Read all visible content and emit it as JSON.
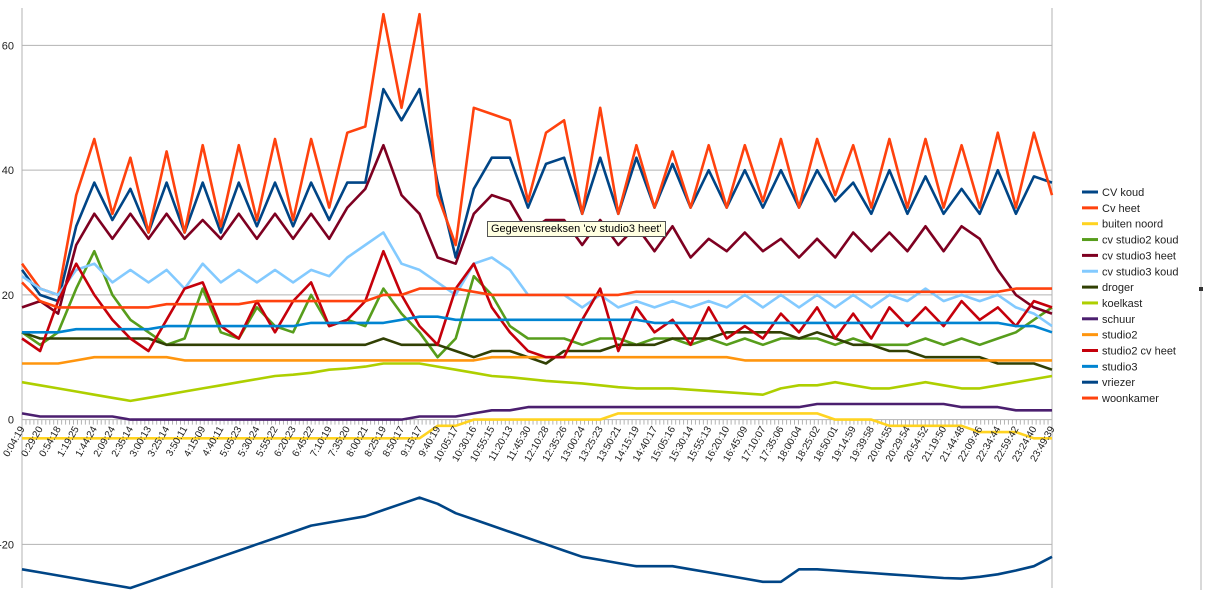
{
  "chart_data": {
    "type": "line",
    "ylim": [
      -27,
      66
    ],
    "yticks": [
      60,
      40,
      20,
      0,
      -20
    ],
    "grid": true,
    "legend_position": "right",
    "x": [
      "0:04:19",
      "0:29:20",
      "0:54:18",
      "1:19:25",
      "1:44:24",
      "2:09:24",
      "2:35:14",
      "3:00:13",
      "3:25:14",
      "3:50:11",
      "4:15:09",
      "4:40:11",
      "5:05:23",
      "5:30:24",
      "5:55:22",
      "6:20:23",
      "6:45:22",
      "7:10:19",
      "7:35:20",
      "8:00:21",
      "8:25:19",
      "8:50:17",
      "9:15:17",
      "9:40:19",
      "10:05:17",
      "10:30:16",
      "10:55:15",
      "11:20:13",
      "11:45:30",
      "12:10:28",
      "12:35:26",
      "13:00:24",
      "13:25:23",
      "13:50:21",
      "14:15:19",
      "14:40:17",
      "15:05:16",
      "15:30:14",
      "15:55:13",
      "16:20:10",
      "16:45:09",
      "17:10:07",
      "17:35:06",
      "18:00:04",
      "18:25:02",
      "18:50:01",
      "19:14:59",
      "19:39:58",
      "20:04:55",
      "20:29:54",
      "20:54:52",
      "21:19:50",
      "21:44:48",
      "22:09:46",
      "22:34:44",
      "22:59:42",
      "23:24:40",
      "23:49:39"
    ],
    "series": [
      {
        "name": "CV koud",
        "color": "#004586",
        "values": [
          24,
          20,
          19,
          31,
          38,
          32,
          37,
          30,
          38,
          30,
          38,
          30,
          38,
          31,
          38,
          31,
          38,
          32,
          38,
          38,
          53,
          48,
          53,
          38,
          26,
          37,
          42,
          42,
          34,
          41,
          42,
          33,
          42,
          33,
          42,
          34,
          41,
          34,
          40,
          34,
          40,
          34,
          40,
          34,
          40,
          35,
          38,
          33,
          40,
          33,
          39,
          33,
          37,
          33,
          40,
          33,
          39,
          38
        ]
      },
      {
        "name": "Cv heet",
        "color": "#ff420e",
        "values": [
          25,
          21,
          20,
          36,
          45,
          33,
          42,
          30,
          43,
          30,
          44,
          31,
          44,
          32,
          45,
          32,
          45,
          34,
          46,
          47,
          65,
          50,
          65,
          36,
          28,
          50,
          49,
          48,
          35,
          46,
          48,
          33,
          50,
          33,
          44,
          34,
          43,
          34,
          44,
          34,
          44,
          35,
          45,
          34,
          45,
          36,
          44,
          34,
          45,
          34,
          45,
          34,
          44,
          34,
          46,
          34,
          46,
          36
        ]
      },
      {
        "name": "buiten noord",
        "color": "#ffd320",
        "values": [
          -3,
          -3,
          -3,
          -3,
          -3,
          -3,
          -3,
          -3,
          -3,
          -3,
          -3,
          -3,
          -3,
          -3,
          -3,
          -3,
          -3,
          -3,
          -3,
          -3,
          -3,
          -3,
          -3,
          -1,
          -1,
          0,
          0,
          0,
          0,
          0,
          0,
          0,
          0,
          1,
          1,
          1,
          1,
          1,
          1,
          1,
          1,
          1,
          1,
          1,
          1,
          0,
          0,
          0,
          -1,
          -1,
          -1,
          -1,
          -1,
          -2,
          -2,
          -2,
          -3,
          -3
        ]
      },
      {
        "name": "cv studio2 koud",
        "color": "#579d1c",
        "values": [
          14,
          12,
          14,
          21,
          27,
          20,
          16,
          14,
          12,
          13,
          21,
          14,
          13,
          18,
          15,
          14,
          20,
          15,
          16,
          15,
          21,
          17,
          14,
          10,
          13,
          23,
          20,
          15,
          13,
          13,
          13,
          12,
          13,
          13,
          12,
          13,
          13,
          12,
          13,
          12,
          13,
          12,
          13,
          13,
          13,
          12,
          13,
          12,
          12,
          12,
          13,
          12,
          13,
          12,
          13,
          14,
          16,
          18
        ]
      },
      {
        "name": "cv studio3 heet",
        "color": "#7e0021",
        "values": [
          18,
          19,
          17,
          28,
          33,
          29,
          33,
          29,
          33,
          29,
          32,
          29,
          33,
          29,
          33,
          29,
          33,
          29,
          34,
          37,
          44,
          36,
          33,
          26,
          25,
          33,
          36,
          35,
          30,
          32,
          32,
          28,
          32,
          28,
          31,
          27,
          31,
          26,
          29,
          27,
          30,
          27,
          29,
          26,
          29,
          26,
          30,
          27,
          30,
          27,
          31,
          27,
          31,
          29,
          24,
          20,
          18,
          17
        ]
      },
      {
        "name": "cv studio3 koud",
        "color": "#83caff",
        "values": [
          23,
          21,
          20,
          24,
          25,
          22,
          24,
          22,
          24,
          21,
          25,
          22,
          24,
          22,
          24,
          22,
          24,
          23,
          26,
          28,
          30,
          25,
          24,
          22,
          20,
          25,
          26,
          24,
          20,
          20,
          20,
          18,
          20,
          18,
          19,
          18,
          19,
          18,
          19,
          18,
          20,
          18,
          20,
          18,
          20,
          18,
          20,
          18,
          20,
          19,
          21,
          19,
          20,
          19,
          20,
          18,
          17,
          15
        ]
      },
      {
        "name": "droger",
        "color": "#314004",
        "values": [
          14,
          13,
          13,
          13,
          13,
          13,
          13,
          13,
          12,
          12,
          12,
          12,
          12,
          12,
          12,
          12,
          12,
          12,
          12,
          12,
          13,
          12,
          12,
          12,
          11,
          10,
          11,
          11,
          10,
          9,
          11,
          11,
          11,
          12,
          12,
          12,
          13,
          13,
          13,
          14,
          14,
          14,
          14,
          13,
          14,
          13,
          12,
          12,
          11,
          11,
          10,
          10,
          10,
          10,
          9,
          9,
          9,
          8
        ]
      },
      {
        "name": "koelkast",
        "color": "#aecf00",
        "values": [
          6,
          5.5,
          5,
          4.5,
          4,
          3.5,
          3,
          3.5,
          4,
          4.5,
          5,
          5.5,
          6,
          6.5,
          7,
          7.2,
          7.5,
          8,
          8.2,
          8.5,
          9,
          9,
          9,
          8.5,
          8,
          7.5,
          7,
          6.8,
          6.5,
          6.2,
          6,
          5.8,
          5.5,
          5.2,
          5,
          5,
          5,
          4.8,
          4.6,
          4.4,
          4.2,
          4,
          5,
          5.5,
          5.5,
          6,
          5.5,
          5,
          5,
          5.5,
          6,
          5.5,
          5,
          5,
          5.5,
          6,
          6.5,
          7
        ]
      },
      {
        "name": "schuur",
        "color": "#4b1f6f",
        "values": [
          1,
          0.5,
          0.5,
          0.5,
          0.5,
          0.5,
          0,
          0,
          0,
          0,
          0,
          0,
          0,
          0,
          0,
          0,
          0,
          0,
          0,
          0,
          0,
          0,
          0.5,
          0.5,
          0.5,
          1,
          1.5,
          1.5,
          2,
          2,
          2,
          2,
          2,
          2,
          2,
          2,
          2,
          2,
          2,
          2,
          2,
          2,
          2,
          2,
          2.5,
          2.5,
          2.5,
          2.5,
          2.5,
          2.5,
          2.5,
          2.5,
          2,
          2,
          2,
          1.5,
          1.5,
          1.5
        ]
      },
      {
        "name": "studio2",
        "color": "#ff950e",
        "values": [
          9,
          9,
          9,
          9.5,
          10,
          10,
          10,
          10,
          10,
          9.5,
          9.5,
          9.5,
          9.5,
          9.5,
          9.5,
          9.5,
          9.5,
          9.5,
          9.5,
          9.5,
          9.5,
          9.5,
          9.5,
          9.5,
          9.5,
          9.5,
          10,
          10,
          10,
          10,
          10,
          10,
          10,
          10,
          10,
          10,
          10,
          10,
          10,
          10,
          9.5,
          9.5,
          9.5,
          9.5,
          9.5,
          9.5,
          9.5,
          9.5,
          9.5,
          9.5,
          9.5,
          9.5,
          9.5,
          9.5,
          9.5,
          9.5,
          9.5,
          9.5
        ]
      },
      {
        "name": "studio2 cv heet",
        "color": "#c5000b",
        "values": [
          13,
          11,
          19,
          25,
          20,
          16,
          13,
          11,
          16,
          21,
          22,
          15,
          13,
          19,
          14,
          19,
          22,
          15,
          16,
          19,
          27,
          20,
          15,
          12,
          21,
          25,
          18,
          14,
          11,
          10,
          10,
          16,
          21,
          11,
          18,
          14,
          16,
          12,
          18,
          13,
          15,
          13,
          17,
          14,
          18,
          13,
          17,
          13,
          18,
          15,
          18,
          15,
          19,
          16,
          18,
          15,
          19,
          18
        ]
      },
      {
        "name": "studio3",
        "color": "#0084d1",
        "values": [
          14,
          14,
          14,
          14.5,
          14.5,
          14.5,
          14.5,
          14.5,
          15,
          15,
          15,
          15,
          15,
          15,
          15,
          15,
          15.5,
          15.5,
          15.5,
          15.5,
          15.5,
          16,
          16.5,
          16.5,
          16,
          16,
          16,
          16,
          16,
          16,
          16,
          16,
          16,
          16,
          16,
          15.5,
          15.5,
          15.5,
          15.5,
          15.5,
          15.5,
          15.5,
          15.5,
          15.5,
          15.5,
          15.5,
          15.5,
          15.5,
          15.5,
          15.5,
          15.5,
          15.5,
          15.5,
          15.5,
          15.5,
          15,
          15,
          14
        ]
      },
      {
        "name": "vriezer",
        "color": "#004586",
        "values": [
          -24,
          -24.5,
          -25,
          -25.5,
          -26,
          -26.5,
          -27,
          -26,
          -25,
          -24,
          -23,
          -22,
          -21,
          -20,
          -19,
          -18,
          -17,
          -16.5,
          -16,
          -15.5,
          -14.5,
          -13.5,
          -12.5,
          -13.5,
          -15,
          -16,
          -17,
          -18,
          -19,
          -20,
          -21,
          -22,
          -22.5,
          -23,
          -23.5,
          -23.5,
          -23.5,
          -24,
          -24.5,
          -25,
          -25.5,
          -26,
          -26,
          -24,
          -24,
          -24.2,
          -24.4,
          -24.6,
          -24.8,
          -25,
          -25.2,
          -25.4,
          -25.5,
          -25.2,
          -24.8,
          -24.2,
          -23.5,
          -22
        ]
      },
      {
        "name": "woonkamer",
        "color": "#ff420e",
        "values": [
          22,
          19,
          18,
          18,
          18,
          18,
          18,
          18,
          18.5,
          18.5,
          18.5,
          18.5,
          18.5,
          19,
          19,
          19,
          19,
          19,
          19,
          19,
          20,
          20,
          21,
          21,
          21,
          20.5,
          20,
          20,
          20,
          20,
          20,
          20,
          20,
          20,
          20.5,
          20.5,
          20.5,
          20.5,
          20.5,
          20.5,
          20.5,
          20.5,
          20.5,
          20.5,
          20.5,
          20.5,
          20.5,
          20.5,
          20.5,
          20.5,
          20.5,
          20.5,
          20.5,
          20.5,
          20.5,
          21,
          21,
          21
        ]
      }
    ]
  },
  "tooltip": {
    "text": "Gegevensreeksen 'cv studio3 heet'"
  }
}
